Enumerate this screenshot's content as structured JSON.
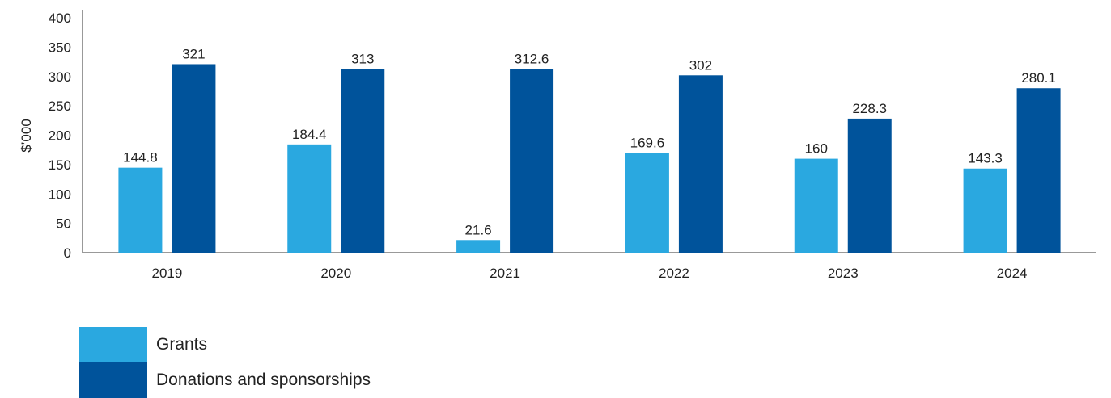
{
  "chart_data": {
    "type": "bar",
    "categories": [
      "2019",
      "2020",
      "2021",
      "2022",
      "2023",
      "2024"
    ],
    "series": [
      {
        "name": "Grants",
        "values": [
          144.8,
          184.4,
          21.6,
          169.6,
          160,
          143.3
        ],
        "labels": [
          "144.8",
          "184.4",
          "21.6",
          "169.6",
          "160",
          "143.3"
        ],
        "color": "#2aa8e0"
      },
      {
        "name": "Donations and sponsorships",
        "values": [
          321,
          313,
          312.6,
          302,
          228.3,
          280.1
        ],
        "labels": [
          "321",
          "313",
          "312.6",
          "302",
          "228.3",
          "280.1"
        ],
        "color": "#00539b"
      }
    ],
    "ylabel": "$’000",
    "ylim": [
      0,
      400
    ],
    "yticks": [
      "0",
      "50",
      "100",
      "150",
      "200",
      "250",
      "300",
      "350",
      "400"
    ],
    "grid": false,
    "legend_position": "bottom-left"
  }
}
